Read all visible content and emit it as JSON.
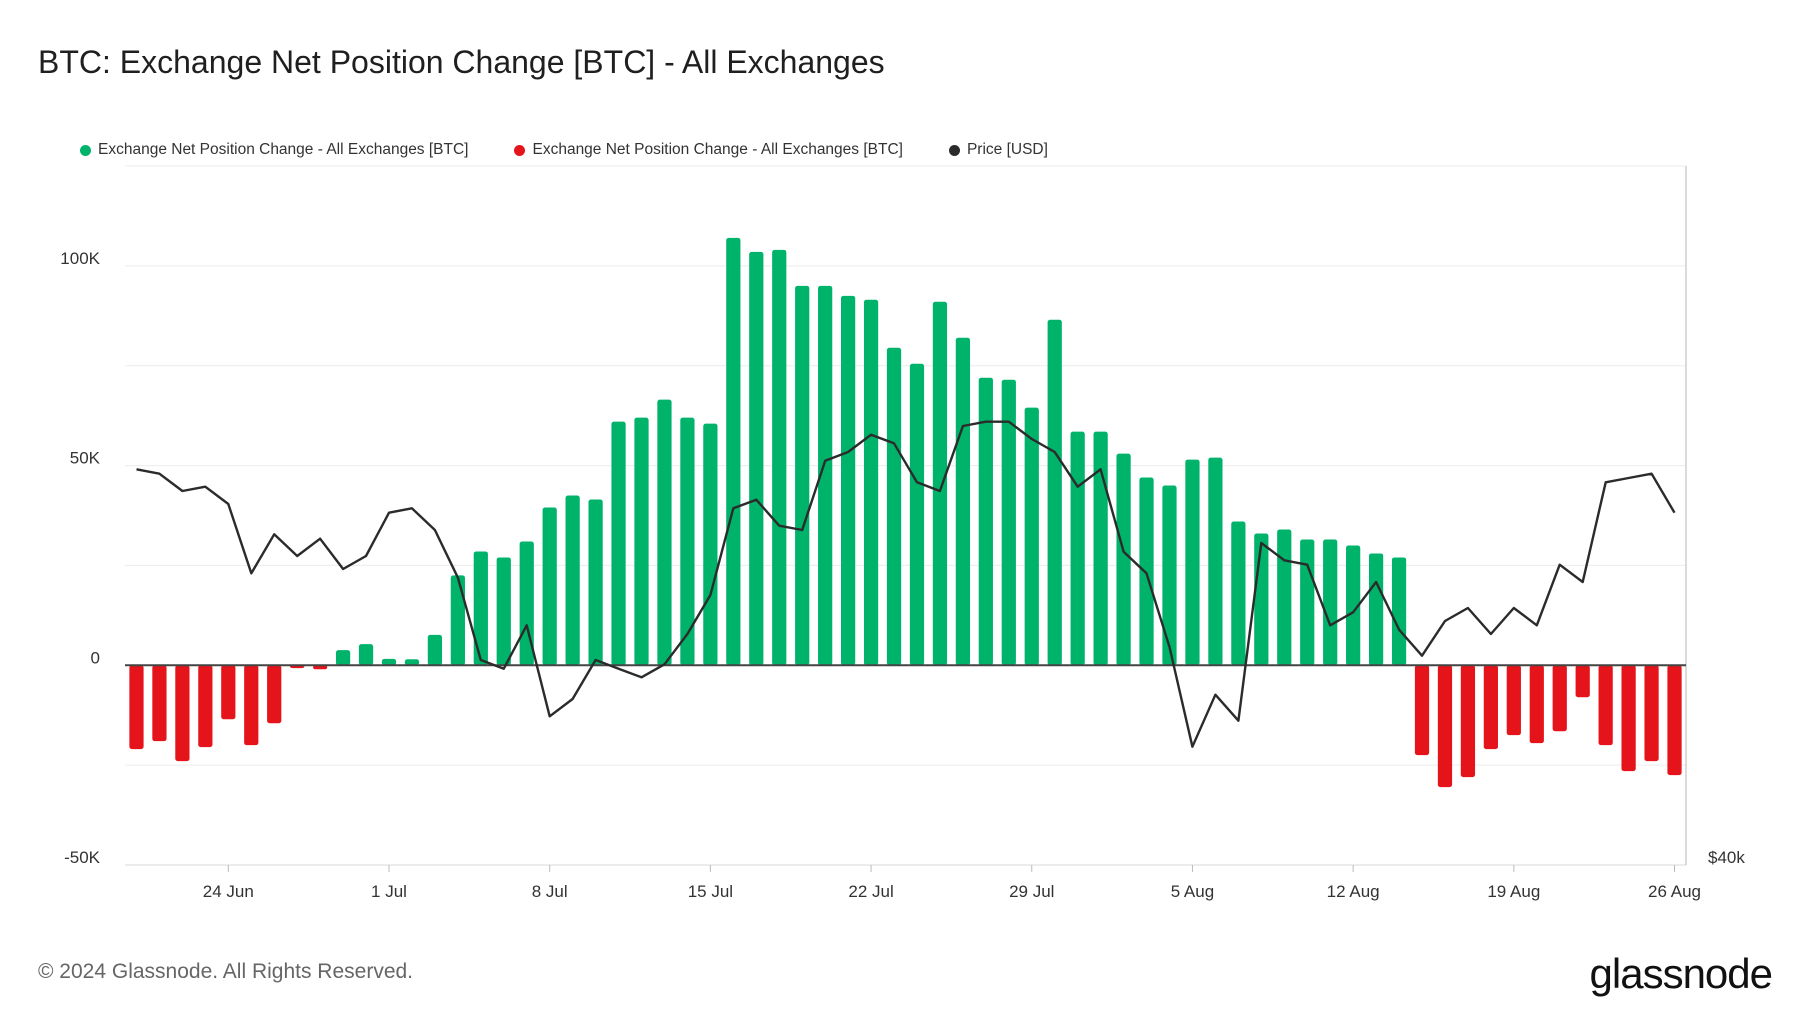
{
  "title": "BTC: Exchange Net Position Change [BTC] - All Exchanges",
  "legend": [
    {
      "label": "Exchange Net Position Change - All Exchanges [BTC]",
      "color": "#00b36b"
    },
    {
      "label": "Exchange Net Position Change - All Exchanges [BTC]",
      "color": "#e5141b"
    },
    {
      "label": "Price [USD]",
      "color": "#2b2b2b"
    }
  ],
  "footer": "© 2024 Glassnode. All Rights Reserved.",
  "logo": "glassnode",
  "chart_data": {
    "type": "bar",
    "title": "BTC: Exchange Net Position Change [BTC] - All Exchanges",
    "ylim": [
      -50000,
      125000
    ],
    "y_ticks": [
      {
        "value": 100000,
        "label": "100K"
      },
      {
        "value": 50000,
        "label": "50K"
      },
      {
        "value": 0,
        "label": "0"
      },
      {
        "value": -50000,
        "label": "-50K"
      }
    ],
    "y2_label": "$40k",
    "x_ticks": [
      "24 Jun",
      "1 Jul",
      "8 Jul",
      "15 Jul",
      "22 Jul",
      "29 Jul",
      "5 Aug",
      "12 Aug",
      "19 Aug",
      "26 Aug"
    ],
    "dates": [
      "2024-06-20",
      "2024-06-21",
      "2024-06-22",
      "2024-06-23",
      "2024-06-24",
      "2024-06-25",
      "2024-06-26",
      "2024-06-27",
      "2024-06-28",
      "2024-06-29",
      "2024-06-30",
      "2024-07-01",
      "2024-07-02",
      "2024-07-03",
      "2024-07-04",
      "2024-07-05",
      "2024-07-06",
      "2024-07-07",
      "2024-07-08",
      "2024-07-09",
      "2024-07-10",
      "2024-07-11",
      "2024-07-12",
      "2024-07-13",
      "2024-07-14",
      "2024-07-15",
      "2024-07-16",
      "2024-07-17",
      "2024-07-18",
      "2024-07-19",
      "2024-07-20",
      "2024-07-21",
      "2024-07-22",
      "2024-07-23",
      "2024-07-24",
      "2024-07-25",
      "2024-07-26",
      "2024-07-27",
      "2024-07-28",
      "2024-07-29",
      "2024-07-30",
      "2024-07-31",
      "2024-08-01",
      "2024-08-02",
      "2024-08-03",
      "2024-08-04",
      "2024-08-05",
      "2024-08-06",
      "2024-08-07",
      "2024-08-08",
      "2024-08-09",
      "2024-08-10",
      "2024-08-11",
      "2024-08-12",
      "2024-08-13",
      "2024-08-14",
      "2024-08-15",
      "2024-08-16",
      "2024-08-17",
      "2024-08-18",
      "2024-08-19",
      "2024-08-20",
      "2024-08-21",
      "2024-08-22",
      "2024-08-23",
      "2024-08-24",
      "2024-08-25",
      "2024-08-26"
    ],
    "series": [
      {
        "name": "Exchange Net Position Change - All Exchanges [BTC]",
        "color_positive": "#00b36b",
        "color_negative": "#e5141b",
        "values": [
          -21000,
          -19000,
          -24000,
          -20500,
          -13500,
          -20000,
          -14500,
          -700,
          -1000,
          3800,
          5300,
          1600,
          1500,
          7600,
          22500,
          28500,
          27000,
          31000,
          39500,
          42500,
          41500,
          61000,
          62000,
          66500,
          62000,
          60500,
          107000,
          103500,
          104000,
          95000,
          95000,
          92500,
          91500,
          79500,
          75500,
          91000,
          82000,
          72000,
          71500,
          64500,
          86500,
          58500,
          58500,
          53000,
          47000,
          45000,
          51500,
          52000,
          36000,
          33000,
          34000,
          31500,
          31500,
          30000,
          28000,
          27000,
          -22500,
          -30500,
          -28000,
          -21000,
          -17500,
          -19500,
          -16500,
          -8000,
          -20000,
          -26500,
          -24000,
          -27500
        ]
      },
      {
        "name": "Price [USD]",
        "color": "#2b2b2b",
        "values": [
          64200,
          64100,
          63700,
          63800,
          63400,
          61800,
          62700,
          62200,
          62600,
          61900,
          62200,
          63200,
          63300,
          62800,
          61700,
          59800,
          59600,
          60600,
          58500,
          58900,
          59800,
          59600,
          59400,
          59700,
          60400,
          61300,
          63300,
          63500,
          62900,
          62800,
          64400,
          64600,
          65000,
          64800,
          63900,
          63700,
          65200,
          65300,
          65300,
          64900,
          64600,
          63800,
          64200,
          62300,
          61800,
          60100,
          57800,
          59000,
          58400,
          62500,
          62100,
          62000,
          60600,
          60900,
          61600,
          60500,
          59900,
          60700,
          61000,
          60400,
          61000,
          60600,
          62000,
          61600,
          63900,
          64000,
          64100,
          63200
        ]
      }
    ]
  }
}
